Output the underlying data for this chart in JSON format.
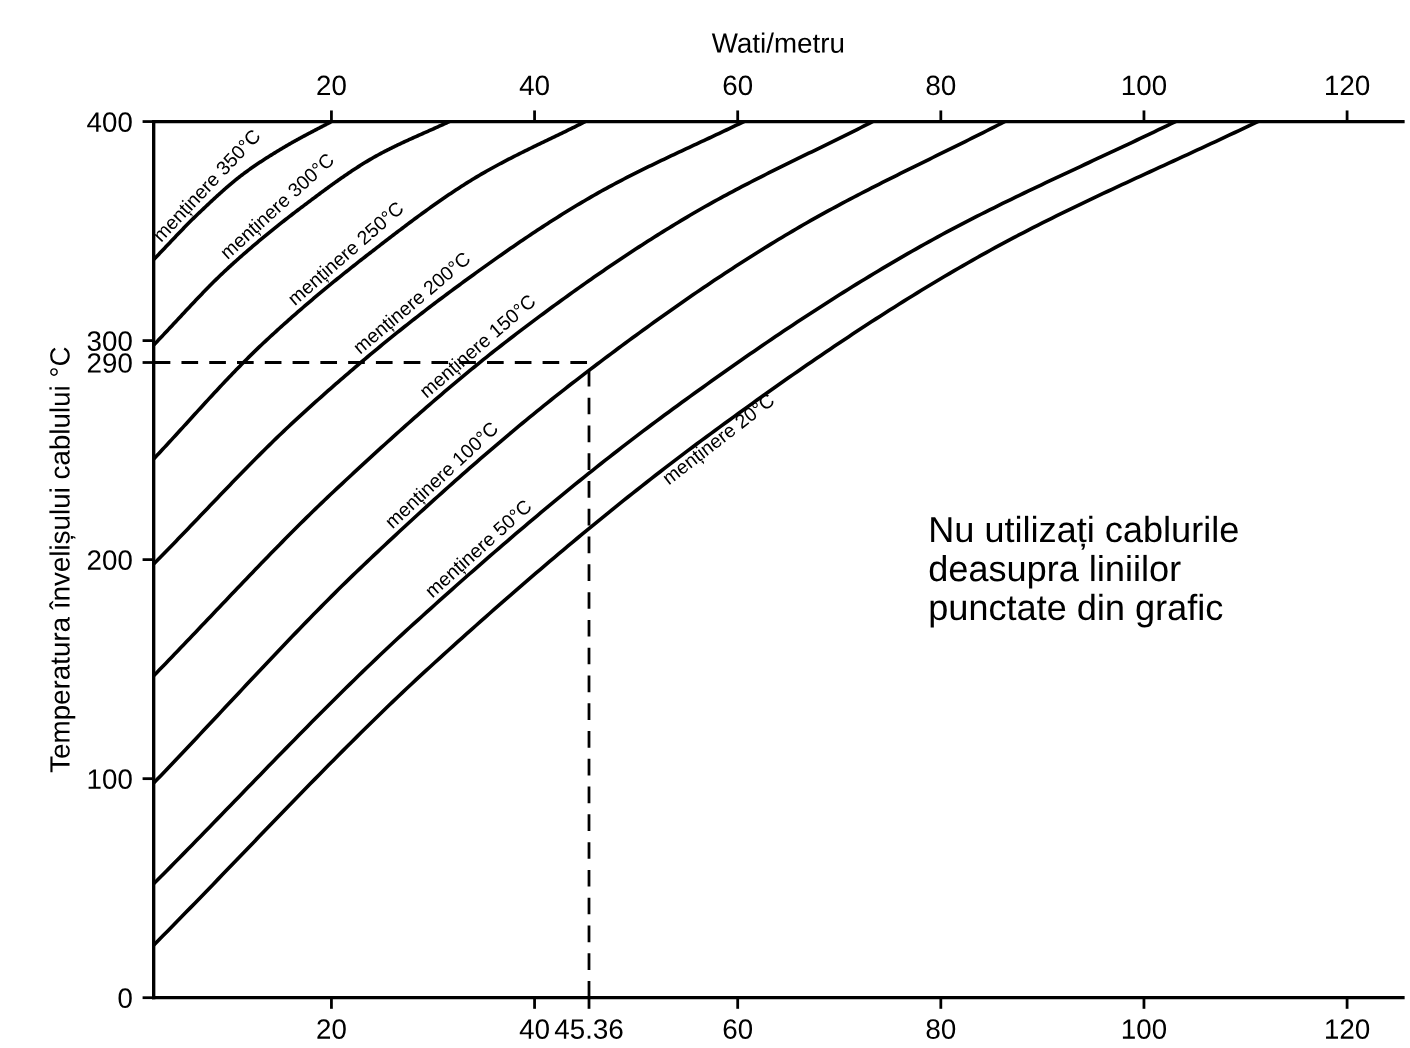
{
  "chart_data": {
    "type": "line",
    "ylabel": "Temperatura învelișului cablului °C",
    "x2label": "Wati/metru",
    "xlim": [
      2.5,
      125.5
    ],
    "xticks": [
      20,
      40,
      45.36,
      60,
      80,
      100,
      120
    ],
    "x2lim": [
      2.5,
      125.5
    ],
    "x2ticks": [
      20,
      40,
      60,
      80,
      100,
      120
    ],
    "ylim": [
      0,
      400
    ],
    "yticks": [
      0,
      100,
      200,
      290,
      300,
      400
    ],
    "grid": false,
    "legend": false,
    "marker": "none",
    "line_style": "solid",
    "series": [
      {
        "name": "menținere 350°C",
        "color": "#000000",
        "x": [
          2.5,
          6.9,
          11.3,
          15.6,
          20
        ],
        "values": [
          337,
          358,
          376,
          389,
          400
        ]
      },
      {
        "name": "menținere 300°C",
        "color": "#000000",
        "x": [
          2.5,
          9.8,
          17.1,
          24.3,
          31.6
        ],
        "values": [
          298,
          333,
          361,
          384,
          400
        ]
      },
      {
        "name": "menținere 250°C",
        "color": "#000000",
        "x": [
          2.5,
          13.1,
          23.8,
          34.4,
          45
        ],
        "values": [
          246,
          298,
          340,
          375,
          400
        ]
      },
      {
        "name": "menținere 200°C",
        "color": "#000000",
        "x": [
          2.5,
          17.0,
          31.6,
          46.1,
          60.6
        ],
        "values": [
          198,
          266,
          322,
          367,
          400
        ]
      },
      {
        "name": "menținere 150°C",
        "color": "#000000",
        "x": [
          2.5,
          20.2,
          37.9,
          55.6,
          73.3
        ],
        "values": [
          147,
          231,
          302,
          358,
          400
        ]
      },
      {
        "name": "menținere 100°C",
        "color": "#000000",
        "x": [
          2.5,
          23.5,
          44.4,
          65.4,
          86.3
        ],
        "values": [
          98,
          199,
          283,
          350,
          400
        ]
      },
      {
        "name": "menținere 50°C",
        "color": "#000000",
        "x": [
          2.5,
          27.7,
          52.8,
          78.0,
          103.1
        ],
        "values": [
          52,
          169,
          266,
          343,
          400
        ]
      },
      {
        "name": "menținere 20°C",
        "color": "#000000",
        "x": [
          2.5,
          29.7,
          56.9,
          84.0,
          111.2
        ],
        "values": [
          24,
          151,
          256,
          339,
          400
        ]
      }
    ],
    "ref_lines": [
      {
        "axis": "y",
        "value": 290,
        "line_style": "dashed",
        "color": "#000000"
      },
      {
        "axis": "x",
        "value": 45.36,
        "line_style": "dashed",
        "color": "#000000"
      }
    ],
    "annotations": [
      "Nu utilizați cablurile\ndeasupra liniilor\npunctate din grafic"
    ]
  }
}
